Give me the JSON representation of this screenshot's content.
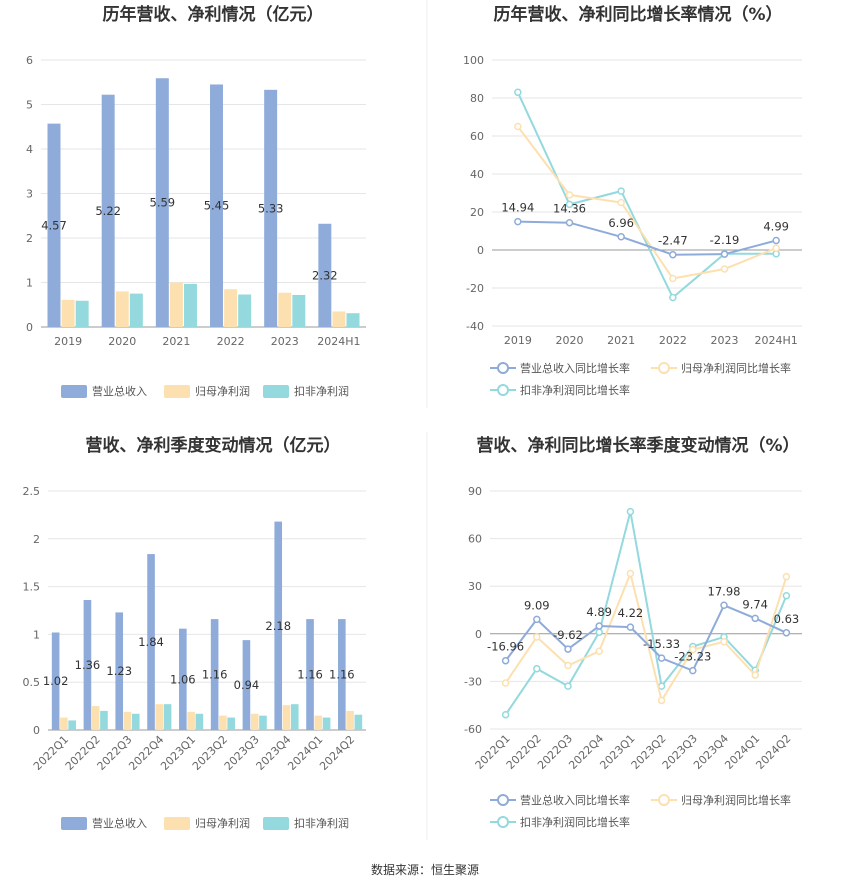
{
  "colors": {
    "revenue": "#8eabd9",
    "net_profit": "#fde0b0",
    "deducted_profit": "#93d9dd",
    "revenue_line": "#8eabd9",
    "net_profit_line": "#fde0b0",
    "deducted_profit_line": "#93d9dd",
    "grid": "#e6e6e6",
    "divider": "#eeeeee"
  },
  "source": "数据来源：恒生聚源",
  "chart_data": [
    {
      "id": "annual_values",
      "type": "bar",
      "title": "历年营收、净利情况（亿元）",
      "categories": [
        "2019",
        "2020",
        "2021",
        "2022",
        "2023",
        "2024H1"
      ],
      "ylim": [
        0,
        6
      ],
      "yticks": [
        0,
        1,
        2,
        3,
        4,
        5,
        6
      ],
      "grid": true,
      "legend_position": "bottom",
      "series": [
        {
          "name": "营业总收入",
          "values": [
            4.57,
            5.22,
            5.59,
            5.45,
            5.33,
            2.32
          ],
          "labels": [
            "4.57",
            "5.22",
            "5.59",
            "5.45",
            "5.33",
            "2.32"
          ]
        },
        {
          "name": "归母净利润",
          "values": [
            0.61,
            0.8,
            1.0,
            0.85,
            0.77,
            0.35
          ]
        },
        {
          "name": "扣非净利润",
          "values": [
            0.59,
            0.75,
            0.97,
            0.73,
            0.72,
            0.31
          ]
        }
      ]
    },
    {
      "id": "annual_growth",
      "type": "line",
      "title": "历年营收、净利同比增长率情况（%）",
      "categories": [
        "2019",
        "2020",
        "2021",
        "2022",
        "2023",
        "2024H1"
      ],
      "ylim": [
        -40,
        100
      ],
      "yticks": [
        -40,
        -20,
        0,
        20,
        40,
        60,
        80,
        100
      ],
      "grid": true,
      "legend_position": "bottom",
      "series": [
        {
          "name": "营业总收入同比增长率",
          "values": [
            14.94,
            14.36,
            6.96,
            -2.47,
            -2.19,
            4.99
          ],
          "labels": [
            "14.94",
            "14.36",
            "6.96",
            "-2.47",
            "-2.19",
            "4.99"
          ]
        },
        {
          "name": "归母净利润同比增长率",
          "values": [
            65,
            29,
            25,
            -15,
            -10,
            1
          ]
        },
        {
          "name": "扣非净利润同比增长率",
          "values": [
            83,
            24,
            31,
            -25,
            -2,
            -2
          ]
        }
      ]
    },
    {
      "id": "quarterly_values",
      "type": "bar",
      "title": "营收、净利季度变动情况（亿元）",
      "categories": [
        "2022Q1",
        "2022Q2",
        "2022Q3",
        "2022Q4",
        "2023Q1",
        "2023Q2",
        "2023Q3",
        "2023Q4",
        "2024Q1",
        "2024Q2"
      ],
      "ylim": [
        0,
        2.5
      ],
      "yticks": [
        0,
        0.5,
        1,
        1.5,
        2,
        2.5
      ],
      "grid": true,
      "legend_position": "bottom",
      "series": [
        {
          "name": "营业总收入",
          "values": [
            1.02,
            1.36,
            1.23,
            1.84,
            1.06,
            1.16,
            0.94,
            2.18,
            1.16,
            1.16
          ],
          "labels": [
            "1.02",
            "1.36",
            "1.23",
            "1.84",
            "1.06",
            "1.16",
            "0.94",
            "2.18",
            "1.16",
            "1.16"
          ]
        },
        {
          "name": "归母净利润",
          "values": [
            0.13,
            0.25,
            0.19,
            0.27,
            0.19,
            0.15,
            0.17,
            0.26,
            0.15,
            0.2
          ]
        },
        {
          "name": "扣非净利润",
          "values": [
            0.1,
            0.2,
            0.17,
            0.27,
            0.17,
            0.13,
            0.15,
            0.27,
            0.13,
            0.16
          ]
        }
      ]
    },
    {
      "id": "quarterly_growth",
      "type": "line",
      "title": "营收、净利同比增长率季度变动情况（%）",
      "categories": [
        "2022Q1",
        "2022Q2",
        "2022Q3",
        "2022Q4",
        "2023Q1",
        "2023Q2",
        "2023Q3",
        "2023Q4",
        "2024Q1",
        "2024Q2"
      ],
      "ylim": [
        -60,
        90
      ],
      "yticks": [
        -60,
        -30,
        0,
        30,
        60,
        90
      ],
      "grid": true,
      "legend_position": "bottom",
      "series": [
        {
          "name": "营业总收入同比增长率",
          "values": [
            -16.96,
            9.09,
            -9.62,
            4.89,
            4.22,
            -15.33,
            -23.23,
            17.98,
            9.74,
            0.63
          ],
          "labels": [
            "-16.96",
            "9.09",
            "-9.62",
            "4.89",
            "4.22",
            "-15.33",
            "-23.23",
            "17.98",
            "9.74",
            "0.63"
          ]
        },
        {
          "name": "归母净利润同比增长率",
          "values": [
            -31,
            -2,
            -20,
            -11,
            38,
            -42,
            -10,
            -5,
            -26,
            36
          ]
        },
        {
          "name": "扣非净利润同比增长率",
          "values": [
            -51,
            -22,
            -33,
            1,
            77,
            -33,
            -8,
            -2,
            -23,
            24
          ]
        }
      ]
    }
  ]
}
